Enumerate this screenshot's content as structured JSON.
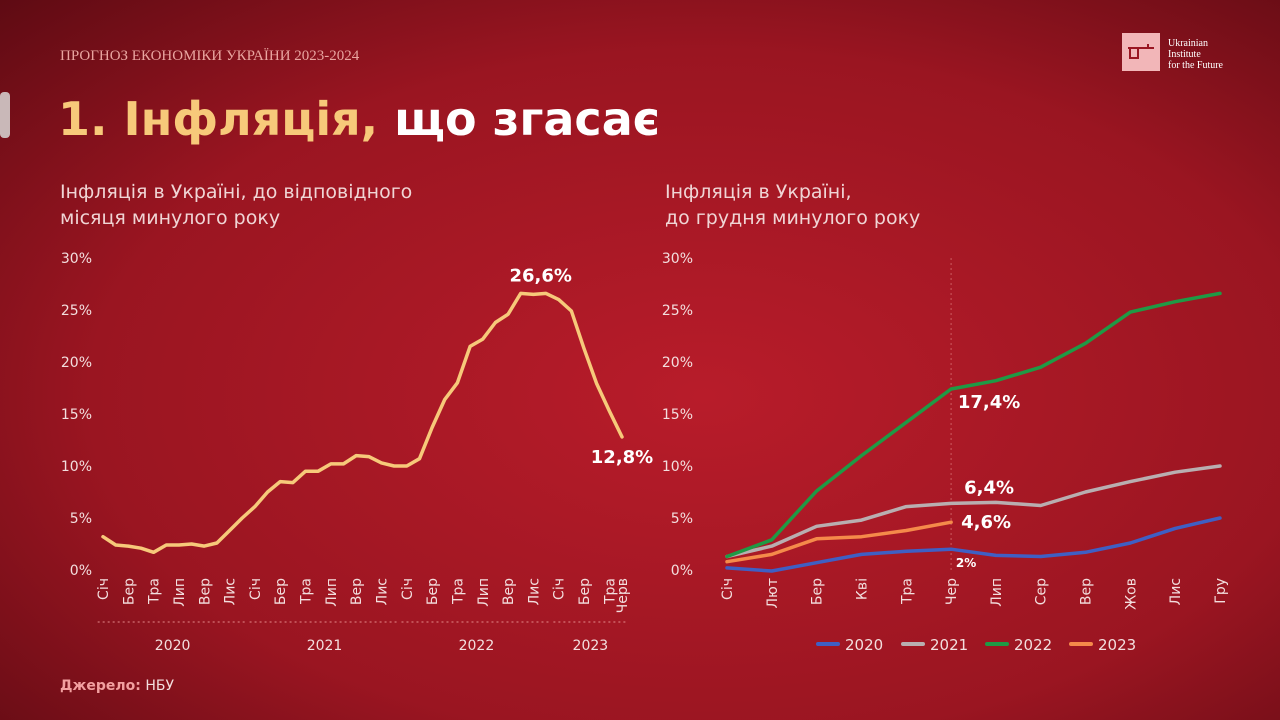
{
  "header": {
    "subtitle": "ПРОГНОЗ ЕКОНОМІКИ УКРАЇНИ 2023-2024",
    "title_highlight": "1. Інфляція,",
    "title_rest": "що згасає",
    "logo": [
      "Ukrainian",
      "Institute",
      "for the Future"
    ]
  },
  "source": {
    "label": "Джерело:",
    "text": "НБУ"
  },
  "chart_data": [
    {
      "type": "line",
      "title": [
        "Інфляція в Україні, до відповідного",
        "місяця минулого року"
      ],
      "categories": [
        "Січ",
        null,
        "Бер",
        null,
        "Тра",
        null,
        "Лип",
        null,
        "Вер",
        null,
        "Лис",
        null,
        "Січ",
        null,
        "Бер",
        null,
        "Тра",
        null,
        "Лип",
        null,
        "Вер",
        null,
        "Лис",
        null,
        "Січ",
        null,
        "Бер",
        null,
        "Тра",
        null,
        "Лип",
        null,
        "Вер",
        null,
        "Лис",
        null,
        "Січ",
        null,
        "Бер",
        null,
        "Тра",
        "Черв"
      ],
      "groups": [
        "2020",
        "2021",
        "2022",
        "2023"
      ],
      "values": [
        3.2,
        2.4,
        2.3,
        2.1,
        1.7,
        2.4,
        2.4,
        2.5,
        2.3,
        2.6,
        3.8,
        5.0,
        6.1,
        7.5,
        8.5,
        8.4,
        9.5,
        9.5,
        10.2,
        10.2,
        11.0,
        10.9,
        10.3,
        10.0,
        10.0,
        10.7,
        13.7,
        16.4,
        18.0,
        21.5,
        22.2,
        23.8,
        24.6,
        26.6,
        26.5,
        26.6,
        26.0,
        24.9,
        21.3,
        17.9,
        15.3,
        12.8
      ],
      "value_labels": [
        null,
        null,
        null,
        null,
        null,
        null,
        null,
        null,
        null,
        null,
        null,
        null,
        null,
        null,
        null,
        null,
        null,
        null,
        null,
        null,
        null,
        null,
        null,
        null,
        null,
        null,
        null,
        null,
        null,
        null,
        null,
        null,
        null,
        "26,6%",
        null,
        null,
        null,
        null,
        null,
        null,
        null,
        "12,8%"
      ],
      "color": "#f7c97a",
      "ylim": [
        0,
        30
      ],
      "yticks": [
        {
          "value": 0,
          "label": "0%"
        },
        {
          "value": 5,
          "label": "5%"
        },
        {
          "value": 10,
          "label": "10%"
        },
        {
          "value": 15,
          "label": "15%"
        },
        {
          "value": 20,
          "label": "20%"
        },
        {
          "value": 25,
          "label": "25%"
        },
        {
          "value": 30,
          "label": "30%"
        }
      ]
    },
    {
      "type": "line",
      "title": [
        "Інфляція в Україні,",
        "до грудня минулого року"
      ],
      "categories": [
        "Січ",
        "Лют",
        "Бер",
        "Кві",
        "Тра",
        "Чер",
        "Лип",
        "Сер",
        "Вер",
        "Жов",
        "Лис",
        "Гру"
      ],
      "series": [
        {
          "name": "2020",
          "color": "#3f5fc4",
          "values": [
            0.2,
            -0.1,
            0.7,
            1.5,
            1.8,
            2.0,
            1.4,
            1.3,
            1.7,
            2.6,
            4.0,
            5.0
          ],
          "value_labels": [
            null,
            null,
            null,
            null,
            null,
            "2%",
            null,
            null,
            null,
            null,
            null,
            null
          ]
        },
        {
          "name": "2021",
          "color": "#b9aeb0",
          "values": [
            1.3,
            2.3,
            4.2,
            4.8,
            6.1,
            6.4,
            6.5,
            6.2,
            7.5,
            8.5,
            9.4,
            10.0
          ],
          "value_labels": [
            null,
            null,
            null,
            null,
            null,
            "6,4%",
            null,
            null,
            null,
            null,
            null,
            null
          ]
        },
        {
          "name": "2022",
          "color": "#1f9a45",
          "values": [
            1.3,
            2.9,
            7.6,
            11.0,
            14.2,
            17.4,
            18.2,
            19.5,
            21.8,
            24.8,
            25.8,
            26.6
          ],
          "value_labels": [
            null,
            null,
            null,
            null,
            null,
            "17,4%",
            null,
            null,
            null,
            null,
            null,
            null
          ]
        },
        {
          "name": "2023",
          "color": "#f58a4a",
          "values": [
            0.8,
            1.5,
            3.0,
            3.2,
            3.8,
            4.6,
            null,
            null,
            null,
            null,
            null,
            null
          ],
          "value_labels": [
            null,
            null,
            null,
            null,
            null,
            "4,6%",
            null,
            null,
            null,
            null,
            null,
            null
          ]
        }
      ],
      "ylim": [
        0,
        30
      ],
      "yticks": [
        {
          "value": 0,
          "label": "0%"
        },
        {
          "value": 5,
          "label": "5%"
        },
        {
          "value": 10,
          "label": "10%"
        },
        {
          "value": 15,
          "label": "15%"
        },
        {
          "value": 20,
          "label": "20%"
        },
        {
          "value": 25,
          "label": "25%"
        },
        {
          "value": 30,
          "label": "30%"
        }
      ],
      "legend": "bottom"
    }
  ]
}
